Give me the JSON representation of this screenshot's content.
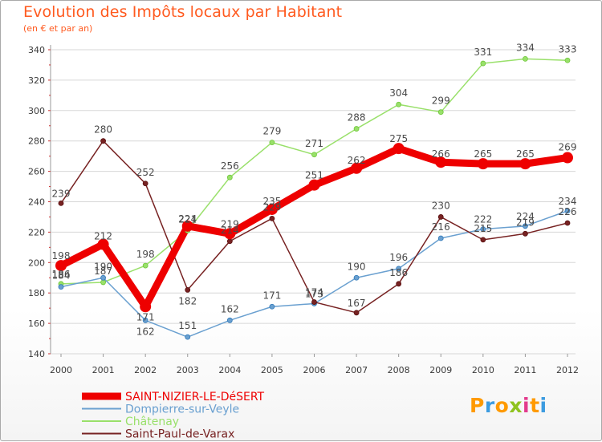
{
  "title": "Evolution des Impôts locaux par Habitant",
  "subtitle": "(en € et par an)",
  "logo": {
    "letters": [
      "P",
      "r",
      "o",
      "x",
      "i",
      "t",
      "i"
    ],
    "colors": [
      "#ff9a00",
      "#3c9be0",
      "#ff9a00",
      "#8fc31f",
      "#e33a8c",
      "#ff9a00",
      "#3c9be0"
    ]
  },
  "chart_data": {
    "type": "line",
    "x": [
      "2000",
      "2001",
      "2002",
      "2003",
      "2004",
      "2005",
      "2006",
      "2007",
      "2008",
      "2009",
      "2010",
      "2011",
      "2012"
    ],
    "ylim": [
      140,
      340
    ],
    "yticks": [
      140,
      160,
      180,
      200,
      220,
      240,
      260,
      280,
      300,
      320,
      340
    ],
    "grid": "horizontal",
    "legend_position": "bottom-left",
    "series": [
      {
        "name": "SAINT-NIZIER-LE-DéSERT",
        "color": "#ee0000",
        "width": 9,
        "marker": 7,
        "values": [
          198,
          212,
          171,
          224,
          219,
          235,
          251,
          262,
          275,
          266,
          265,
          265,
          269
        ]
      },
      {
        "name": "Dompierre-sur-Veyle",
        "color": "#6aa0d0",
        "width": 1.5,
        "marker": 3,
        "values": [
          184,
          190,
          162,
          151,
          162,
          171,
          173,
          190,
          196,
          216,
          222,
          224,
          234
        ]
      },
      {
        "name": "Châtenay",
        "color": "#99e06a",
        "width": 1.5,
        "marker": 3,
        "values": [
          186,
          187,
          198,
          221,
          256,
          279,
          271,
          288,
          304,
          299,
          331,
          334,
          333
        ]
      },
      {
        "name": "Saint-Paul-de-Varax",
        "color": "#772222",
        "width": 1.5,
        "marker": 3,
        "values": [
          239,
          280,
          252,
          182,
          214,
          229,
          174,
          167,
          186,
          230,
          215,
          219,
          226
        ]
      }
    ]
  }
}
